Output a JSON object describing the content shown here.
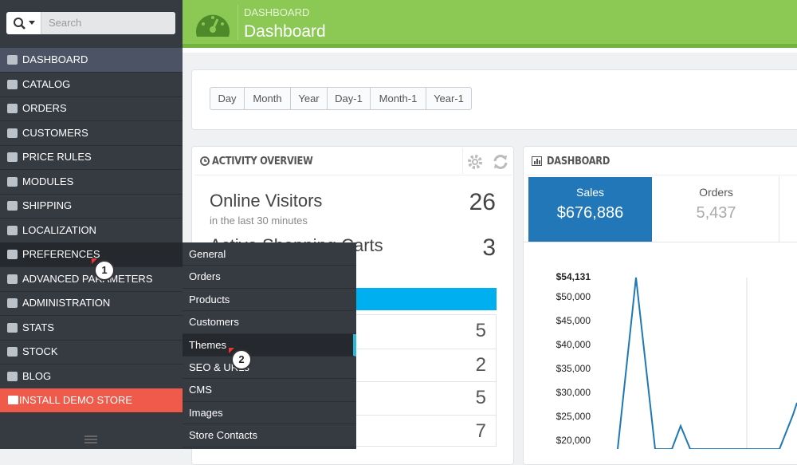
{
  "search": {
    "placeholder": "Search"
  },
  "sidebar": {
    "items": [
      "DASHBOARD",
      "CATALOG",
      "ORDERS",
      "CUSTOMERS",
      "PRICE RULES",
      "MODULES",
      "SHIPPING",
      "LOCALIZATION",
      "PREFERENCES",
      "ADVANCED PARAMETERS",
      "ADMINISTRATION",
      "STATS",
      "STOCK",
      "BLOG",
      "INSTALL DEMO STORE"
    ]
  },
  "header": {
    "breadcrumb": "DASHBOARD",
    "title": "Dashboard"
  },
  "date_filters": [
    "Day",
    "Month",
    "Year",
    "Day-1",
    "Month-1",
    "Year-1"
  ],
  "activity_overview": {
    "title": "ACTIVITY OVERVIEW",
    "online_visitors": {
      "label": "Online Visitors",
      "sublabel": "in the last 30 minutes",
      "value": 26
    },
    "active_carts": {
      "label": "Active Shopping Carts",
      "value": 3
    },
    "list_values": [
      5,
      2,
      5,
      7
    ]
  },
  "dashboard_panel": {
    "title": "DASHBOARD",
    "tiles": [
      {
        "label": "Sales",
        "value": "$676,886"
      },
      {
        "label": "Orders",
        "value": "5,437"
      }
    ],
    "y_labels": [
      "$54,131",
      "$50,000",
      "$45,000",
      "$40,000",
      "$35,000",
      "$30,000",
      "$25,000",
      "$20,000"
    ]
  },
  "submenu": {
    "items": [
      "General",
      "Orders",
      "Products",
      "Customers",
      "Themes",
      "SEO & URLs",
      "CMS",
      "Images",
      "Store Contacts"
    ]
  },
  "callouts": [
    "1",
    "2"
  ]
}
